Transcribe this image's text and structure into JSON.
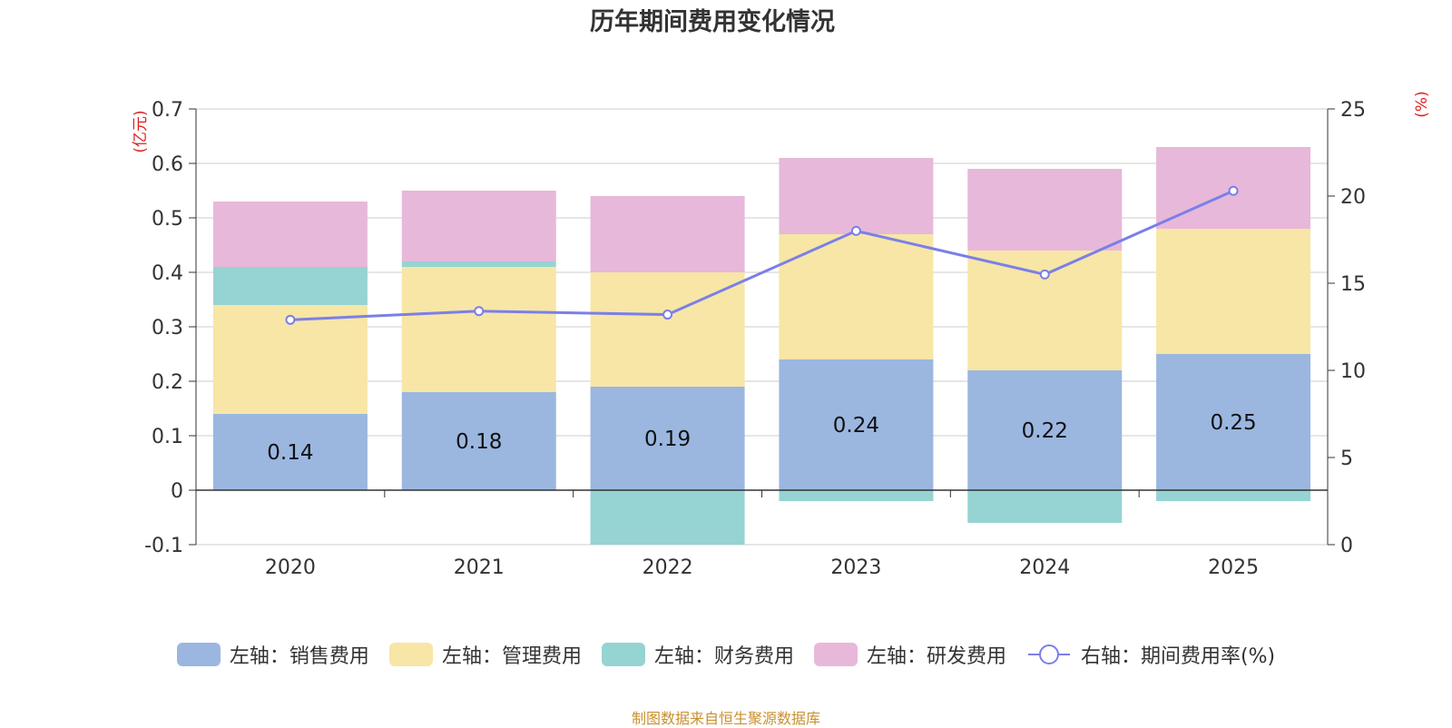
{
  "chart_data": {
    "type": "bar",
    "title": "历年期间费用变化情况",
    "categories": [
      "2020",
      "2021",
      "2022",
      "2023",
      "2024",
      "2025"
    ],
    "left_axis": {
      "unit": "(亿元)",
      "ylim": [
        -0.1,
        0.7
      ],
      "ticks": [
        0.7,
        0.6,
        0.5,
        0.4,
        0.3,
        0.2,
        0.1,
        0,
        -0.1
      ]
    },
    "right_axis": {
      "unit": "(%)",
      "ylim": [
        0,
        25
      ],
      "ticks": [
        25,
        20,
        15,
        10,
        5,
        0
      ]
    },
    "series": [
      {
        "name": "左轴：销售费用",
        "kind": "bar",
        "color": "#9bb7e0",
        "values": [
          0.14,
          0.18,
          0.19,
          0.24,
          0.22,
          0.25
        ],
        "labels": [
          "0.14",
          "0.18",
          "0.19",
          "0.24",
          "0.22",
          "0.25"
        ]
      },
      {
        "name": "左轴：管理费用",
        "kind": "bar",
        "color": "#f7e6a6",
        "values": [
          0.2,
          0.23,
          0.21,
          0.23,
          0.22,
          0.23
        ]
      },
      {
        "name": "左轴：财务费用",
        "kind": "bar",
        "color": "#96d3d3",
        "values": [
          0.07,
          0.01,
          -0.1,
          -0.02,
          -0.06,
          -0.02
        ]
      },
      {
        "name": "左轴：研发费用",
        "kind": "bar",
        "color": "#e7b8da",
        "values": [
          0.12,
          0.13,
          0.14,
          0.14,
          0.15,
          0.15
        ]
      },
      {
        "name": "右轴：期间费用率(%)",
        "kind": "line",
        "color": "#7b7fe8",
        "values": [
          12.9,
          13.4,
          13.2,
          18.0,
          15.5,
          20.3
        ]
      }
    ],
    "grid": true,
    "legend_position": "bottom"
  },
  "source_note": "制图数据来自恒生聚源数据库"
}
